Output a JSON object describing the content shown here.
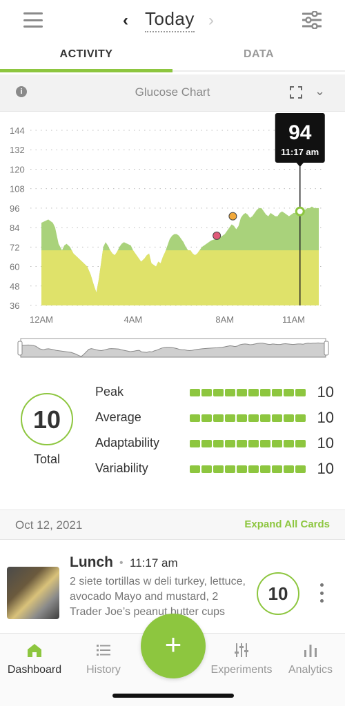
{
  "header": {
    "title": "Today",
    "prev_icon": "chevron-left-icon",
    "next_icon": "chevron-right-icon",
    "prev_glyph": "‹",
    "next_glyph": "›"
  },
  "tabs": [
    {
      "label": "ACTIVITY",
      "active": true
    },
    {
      "label": "DATA",
      "active": false
    }
  ],
  "chart_card": {
    "title": "Glucose Chart",
    "info_glyph": "i",
    "collapse_glyph": "⌄"
  },
  "chart_data": {
    "type": "area",
    "ylim": [
      36,
      144
    ],
    "yticks": [
      "144",
      "132",
      "120",
      "108",
      "96",
      "84",
      "72",
      "60",
      "48",
      "36"
    ],
    "xticks": [
      "12AM",
      "4AM",
      "8AM",
      "11AM"
    ],
    "target_range_upper": 70,
    "series": [
      {
        "x": [
          0,
          0.15,
          0.3,
          0.5,
          0.6,
          0.75,
          0.9,
          1.0,
          1.1,
          1.25,
          1.4,
          1.55,
          1.7,
          1.85,
          2.0,
          2.15,
          2.3,
          2.4,
          2.5,
          2.6,
          2.7,
          2.8,
          2.9,
          3.0,
          3.1,
          3.2,
          3.3,
          3.4,
          3.5,
          3.6,
          3.75,
          3.9,
          4.0,
          4.1,
          4.2,
          4.35,
          4.5,
          4.6,
          4.7,
          4.8,
          5.0,
          5.1,
          5.2,
          5.3,
          5.4,
          5.5,
          5.6,
          5.7,
          5.8,
          5.9,
          6.0,
          6.1,
          6.2,
          6.3,
          6.4,
          6.5,
          6.6,
          6.7,
          6.8,
          6.9,
          7.0,
          7.2,
          7.4,
          7.6,
          7.8,
          8.0,
          8.1,
          8.2,
          8.3,
          8.4,
          8.5,
          8.6,
          8.7,
          8.8,
          8.9,
          9.0,
          9.1,
          9.2,
          9.3,
          9.4,
          9.5,
          9.6,
          9.7,
          9.8,
          9.9,
          10.0,
          10.1,
          10.2,
          10.3,
          10.4,
          10.5,
          10.6,
          10.7,
          10.8,
          10.9,
          11.0,
          11.1,
          11.2,
          11.28,
          11.4,
          11.5,
          11.6,
          11.7,
          11.8,
          11.9,
          12.0,
          12.1
        ],
        "y": [
          87,
          88,
          89,
          87,
          84,
          74,
          70,
          73,
          74,
          72,
          68,
          66,
          64,
          62,
          60,
          55,
          48,
          44,
          52,
          62,
          72,
          75,
          73,
          70,
          68,
          67,
          69,
          72,
          74,
          75,
          74,
          73,
          70,
          68,
          66,
          63,
          65,
          67,
          68,
          62,
          60,
          63,
          62,
          66,
          69,
          73,
          77,
          79,
          80,
          80,
          79,
          77,
          75,
          72,
          70,
          70,
          68,
          67,
          68,
          70,
          72,
          74,
          76,
          77,
          78,
          80,
          82,
          84,
          86,
          85,
          83,
          85,
          90,
          92,
          93,
          92,
          90,
          91,
          93,
          95,
          96,
          96,
          94,
          92,
          91,
          93,
          92,
          91,
          91,
          93,
          94,
          93,
          92,
          91,
          92,
          93,
          93,
          92,
          94,
          96,
          95,
          96,
          96,
          97,
          96,
          96,
          96
        ]
      }
    ],
    "markers": [
      {
        "x": 7.65,
        "y": 79,
        "color": "#e05a7a"
      },
      {
        "x": 8.35,
        "y": 91,
        "color": "#f2a93b"
      },
      {
        "x": 11.28,
        "y": 94,
        "color": "#8dc63f"
      }
    ],
    "tooltip": {
      "value": "94",
      "time": "11:17 am",
      "x": 11.28
    }
  },
  "scores": {
    "total_value": "10",
    "total_label": "Total",
    "metrics": [
      {
        "label": "Peak",
        "value": "10",
        "level": 10
      },
      {
        "label": "Average",
        "value": "10",
        "level": 10
      },
      {
        "label": "Adaptability",
        "value": "10",
        "level": 10
      },
      {
        "label": "Variability",
        "value": "10",
        "level": 10
      }
    ]
  },
  "log": {
    "date": "Oct 12, 2021",
    "expand_label": "Expand All Cards",
    "meal": {
      "name": "Lunch",
      "separator": "•",
      "time": "11:17 am",
      "description": "2 siete tortillas w deli turkey, lettuce, avocado Mayo and mustard, 2 Trader Joe’s peanut butter cups",
      "score": "10"
    }
  },
  "bottom_nav": {
    "items": [
      {
        "label": "Dashboard",
        "icon": "home-icon",
        "active": true
      },
      {
        "label": "History",
        "icon": "list-icon",
        "active": false
      },
      {
        "label": "Experiments",
        "icon": "sliders-icon",
        "active": false
      },
      {
        "label": "Analytics",
        "icon": "bar-chart-icon",
        "active": false
      }
    ],
    "add_glyph": "+"
  },
  "colors": {
    "accent": "#8dc63f",
    "in_range_fill": "#a9d27b",
    "low_band_fill": "#dfe26a"
  }
}
